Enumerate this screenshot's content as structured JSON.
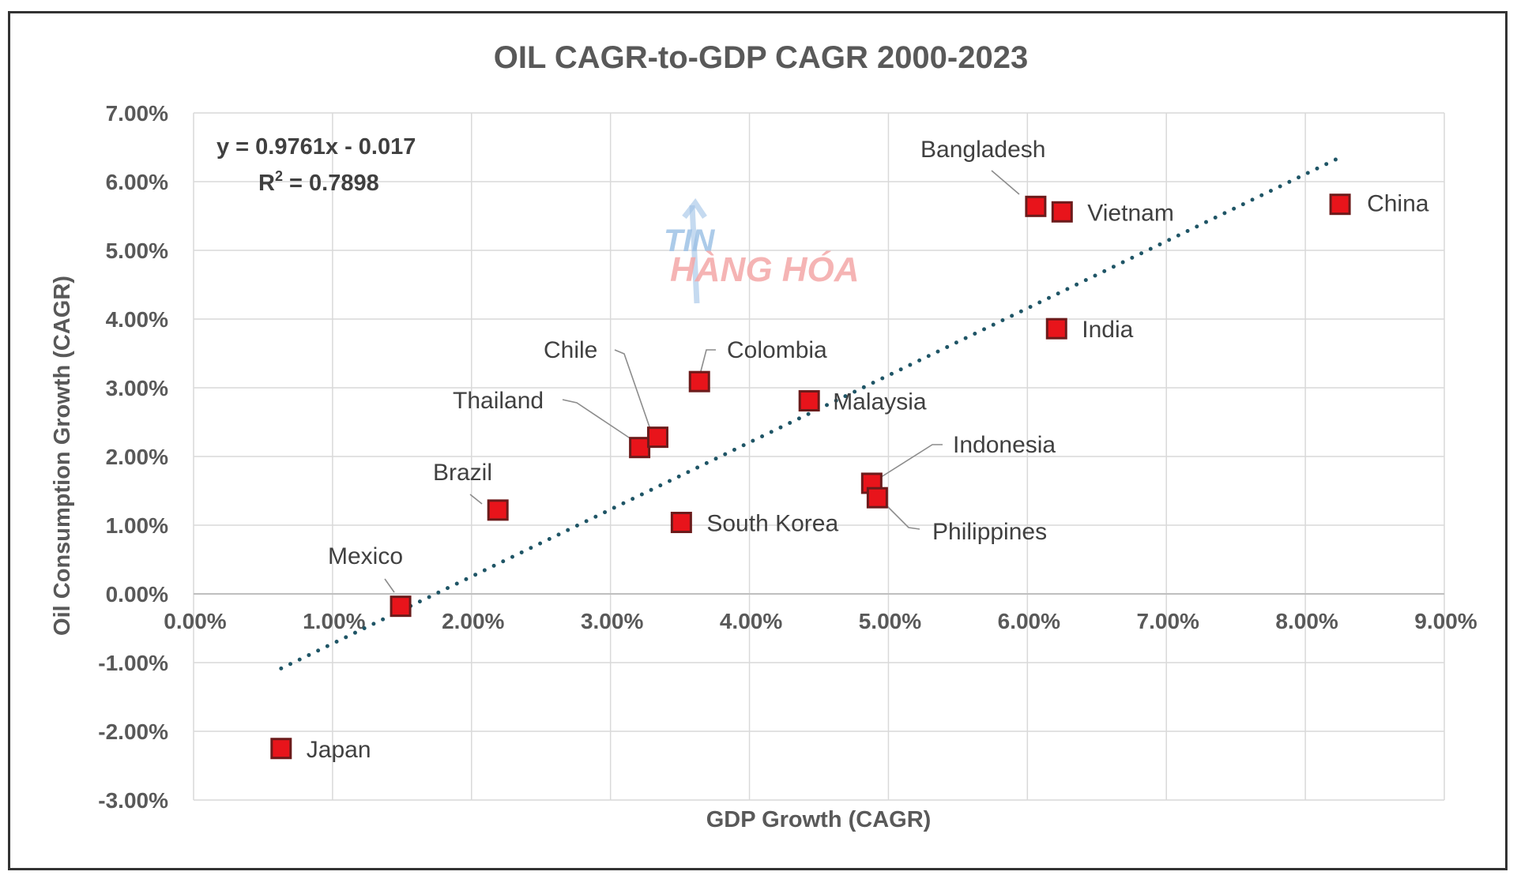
{
  "chart_data": {
    "type": "scatter",
    "title": "OIL CAGR-to-GDP CAGR 2000-2023",
    "xlabel": "GDP Growth (CAGR)",
    "ylabel": "Oil Consumption Growth (CAGR)",
    "xlim": [
      0,
      0.09
    ],
    "ylim": [
      -0.03,
      0.07
    ],
    "x_ticks": [
      "0.00%",
      "1.00%",
      "2.00%",
      "3.00%",
      "4.00%",
      "5.00%",
      "6.00%",
      "7.00%",
      "8.00%",
      "9.00%"
    ],
    "y_ticks": [
      "-3.00%",
      "-2.00%",
      "-1.00%",
      "0.00%",
      "1.00%",
      "2.00%",
      "3.00%",
      "4.00%",
      "5.00%",
      "6.00%",
      "7.00%"
    ],
    "grid": true,
    "points": [
      {
        "label": "Japan",
        "x": 0.0063,
        "y": -0.0225
      },
      {
        "label": "Mexico",
        "x": 0.0149,
        "y": -0.0018
      },
      {
        "label": "Brazil",
        "x": 0.0219,
        "y": 0.0122
      },
      {
        "label": "Thailand",
        "x": 0.0321,
        "y": 0.0213
      },
      {
        "label": "Chile",
        "x": 0.0334,
        "y": 0.0228
      },
      {
        "label": "South Korea",
        "x": 0.0351,
        "y": 0.0104
      },
      {
        "label": "Colombia",
        "x": 0.0364,
        "y": 0.0309
      },
      {
        "label": "Malaysia",
        "x": 0.0443,
        "y": 0.0281
      },
      {
        "label": "Indonesia",
        "x": 0.0488,
        "y": 0.0161
      },
      {
        "label": "Philippines",
        "x": 0.0492,
        "y": 0.014
      },
      {
        "label": "Bangladesh",
        "x": 0.0606,
        "y": 0.0564
      },
      {
        "label": "Vietnam",
        "x": 0.0625,
        "y": 0.0556
      },
      {
        "label": "India",
        "x": 0.0621,
        "y": 0.0386
      },
      {
        "label": "China",
        "x": 0.0825,
        "y": 0.0567
      }
    ],
    "trendline": {
      "equation": "y = 0.9761x - 0.017",
      "r2_label": "R",
      "r2_value": " = 0.7898",
      "slope": 0.9761,
      "intercept": -0.017,
      "x_range": [
        0.0063,
        0.0825
      ]
    },
    "marker_color": "#e8141b",
    "trend_color": "#1f5566"
  },
  "watermark": {
    "line1": "TIN",
    "line2": "HÀNG HÓA"
  }
}
